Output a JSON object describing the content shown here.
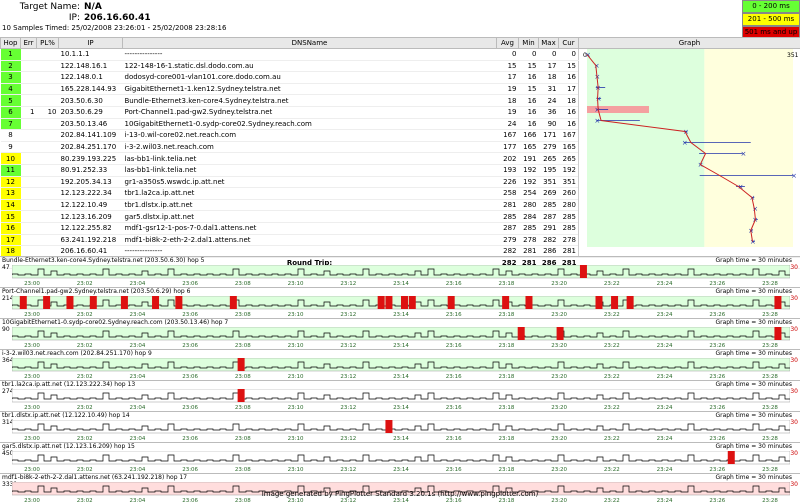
{
  "header": {
    "target_label": "Target Name:",
    "target_value": "N/A",
    "ip_label": "IP:",
    "ip_value": "206.16.60.41",
    "samples_label": "10 Samples Timed:",
    "samples_value": "25/02/2008 23:26:01 - 25/02/2008 23:28:16"
  },
  "legend": [
    {
      "label": "0 - 200 ms",
      "color": "#66ff33"
    },
    {
      "label": "201 - 500 ms",
      "color": "#ffff00"
    },
    {
      "label": "501 ms and up",
      "color": "#dd0000"
    }
  ],
  "columns": [
    "Hop",
    "Err",
    "PL%",
    "IP",
    "DNSName",
    "Avg",
    "Min",
    "Max",
    "Cur",
    "Graph"
  ],
  "graph_scale": {
    "min": "0",
    "max": "351"
  },
  "hops": [
    {
      "hop": "1",
      "err": "",
      "pl": "",
      "ip": "10.1.1.1",
      "dns": "---------------",
      "avg": "0",
      "min": "0",
      "max": "0",
      "cur": "0",
      "color": "#66ff33"
    },
    {
      "hop": "2",
      "err": "",
      "pl": "",
      "ip": "122.148.16.1",
      "dns": "122-148-16-1.static.dsl.dodo.com.au",
      "avg": "15",
      "min": "15",
      "max": "17",
      "cur": "15",
      "color": "#66ff33"
    },
    {
      "hop": "3",
      "err": "",
      "pl": "",
      "ip": "122.148.0.1",
      "dns": "dodosyd-core001-vlan101.core.dodo.com.au",
      "avg": "17",
      "min": "16",
      "max": "18",
      "cur": "16",
      "color": "#66ff33"
    },
    {
      "hop": "4",
      "err": "",
      "pl": "",
      "ip": "165.228.144.93",
      "dns": "GigabitEthernet1-1.ken12.Sydney.telstra.net",
      "avg": "19",
      "min": "15",
      "max": "31",
      "cur": "17",
      "color": "#66ff33"
    },
    {
      "hop": "5",
      "err": "",
      "pl": "",
      "ip": "203.50.6.30",
      "dns": "Bundle-Ethernet3.ken-core4.Sydney.telstra.net",
      "avg": "18",
      "min": "16",
      "max": "24",
      "cur": "18",
      "color": "#66ff33"
    },
    {
      "hop": "6",
      "err": "1",
      "pl": "10",
      "ip": "203.50.6.29",
      "dns": "Port-Channel1.pad-gw2.Sydney.telstra.net",
      "avg": "19",
      "min": "16",
      "max": "36",
      "cur": "16",
      "color": "#66ff33"
    },
    {
      "hop": "7",
      "err": "",
      "pl": "",
      "ip": "203.50.13.46",
      "dns": "10GigabitEthernet1-0.sydp-core02.Sydney.reach.com",
      "avg": "24",
      "min": "16",
      "max": "90",
      "cur": "16",
      "color": "#66ff33"
    },
    {
      "hop": "8",
      "err": "",
      "pl": "",
      "ip": "202.84.141.109",
      "dns": "i-13-0.wil-core02.net.reach.com",
      "avg": "167",
      "min": "166",
      "max": "171",
      "cur": "167",
      "color": "#ffffff"
    },
    {
      "hop": "9",
      "err": "",
      "pl": "",
      "ip": "202.84.251.170",
      "dns": "i-3-2.wil03.net.reach.com",
      "avg": "177",
      "min": "165",
      "max": "279",
      "cur": "165",
      "color": "#ffffff"
    },
    {
      "hop": "10",
      "err": "",
      "pl": "",
      "ip": "80.239.193.225",
      "dns": "las-bb1-link.telia.net",
      "avg": "202",
      "min": "191",
      "max": "265",
      "cur": "265",
      "color": "#ffff00"
    },
    {
      "hop": "11",
      "err": "",
      "pl": "",
      "ip": "80.91.252.33",
      "dns": "las-bb1-link.telia.net",
      "avg": "193",
      "min": "192",
      "max": "195",
      "cur": "192",
      "color": "#66ff33"
    },
    {
      "hop": "12",
      "err": "",
      "pl": "",
      "ip": "192.205.34.13",
      "dns": "gr1-a350s5.wswdc.ip.att.net",
      "avg": "226",
      "min": "192",
      "max": "351",
      "cur": "351",
      "color": "#ffff00"
    },
    {
      "hop": "13",
      "err": "",
      "pl": "",
      "ip": "12.123.222.34",
      "dns": "tbr1.la2ca.ip.att.net",
      "avg": "258",
      "min": "254",
      "max": "269",
      "cur": "260",
      "color": "#ffff00"
    },
    {
      "hop": "14",
      "err": "",
      "pl": "",
      "ip": "12.122.10.49",
      "dns": "tbr1.dlstx.ip.att.net",
      "avg": "281",
      "min": "280",
      "max": "285",
      "cur": "280",
      "color": "#ffff00"
    },
    {
      "hop": "15",
      "err": "",
      "pl": "",
      "ip": "12.123.16.209",
      "dns": "gar5.dlstx.ip.att.net",
      "avg": "285",
      "min": "284",
      "max": "287",
      "cur": "285",
      "color": "#ffff00"
    },
    {
      "hop": "16",
      "err": "",
      "pl": "",
      "ip": "12.122.255.82",
      "dns": "mdf1-gsr12-1-pos-7-0.dal1.attens.net",
      "avg": "287",
      "min": "285",
      "max": "291",
      "cur": "285",
      "color": "#ffff00"
    },
    {
      "hop": "17",
      "err": "",
      "pl": "",
      "ip": "63.241.192.218",
      "dns": "mdf1-bi8k-2-eth-2-2.dal1.attens.net",
      "avg": "279",
      "min": "278",
      "max": "282",
      "cur": "278",
      "color": "#ffff00"
    },
    {
      "hop": "18",
      "err": "",
      "pl": "",
      "ip": "206.16.60.41",
      "dns": "---------------",
      "avg": "282",
      "min": "281",
      "max": "286",
      "cur": "281",
      "color": "#ffff00"
    }
  ],
  "round_trip": {
    "label": "Round Trip:",
    "avg": "282",
    "min": "281",
    "max": "286",
    "cur": "281"
  },
  "time_ticks": [
    "23:00",
    "23:02",
    "23:04",
    "23:06",
    "23:08",
    "23:10",
    "23:12",
    "23:14",
    "23:16",
    "23:18",
    "23:20",
    "23:22",
    "23:24",
    "23:26",
    "23:28"
  ],
  "charts": [
    {
      "title": "Bundle-Ethernet3.ken-core4.Sydney.telstra.net (203.50.6.30) hop 5",
      "ymax": "47",
      "loss": "30",
      "graph_time": "Graph time = 30 minutes",
      "bg": "#ddffdd",
      "red": [
        0.73
      ]
    },
    {
      "title": "Port-Channel1.pad-gw2.Sydney.telstra.net (203.50.6.29) hop 6",
      "ymax": "214",
      "loss": "30",
      "graph_time": "Graph time = 30 minutes",
      "bg": "#ddffdd",
      "red": [
        0.01,
        0.04,
        0.07,
        0.1,
        0.14,
        0.18,
        0.21,
        0.28,
        0.47,
        0.48,
        0.5,
        0.51,
        0.56,
        0.63,
        0.66,
        0.75,
        0.77,
        0.79,
        0.98
      ]
    },
    {
      "title": "10GigabitEthernet1-0.sydp-core02.Sydney.reach.com (203.50.13.46) hop 7",
      "ymax": "90",
      "loss": "30",
      "graph_time": "Graph time = 30 minutes",
      "bg": "#ddffdd",
      "red": [
        0.65,
        0.7,
        0.98
      ]
    },
    {
      "title": "i-3-2.wil03.net.reach.com (202.84.251.170) hop 9",
      "ymax": "364",
      "loss": "30",
      "graph_time": "Graph time = 30 minutes",
      "bg": "#ddffdd",
      "red": [
        0.29
      ]
    },
    {
      "title": "tbr1.la2ca.ip.att.net (12.123.222.34) hop 13",
      "ymax": "274",
      "loss": "30",
      "graph_time": "Graph time = 30 minutes",
      "bg": "#ffffff",
      "red": [
        0.29
      ]
    },
    {
      "title": "tbr1.dlstx.ip.att.net (12.122.10.49) hop 14",
      "ymax": "314",
      "loss": "30",
      "graph_time": "Graph time = 30 minutes",
      "bg": "#ffffff",
      "red": [
        0.48
      ]
    },
    {
      "title": "gar5.dlstx.ip.att.net (12.123.16.209) hop 15",
      "ymax": "450",
      "loss": "30",
      "graph_time": "Graph time = 30 minutes",
      "bg": "#ffffff",
      "red": [
        0.92
      ]
    },
    {
      "title": "mdf1-bi8k-2-eth-2-2.dal1.attens.net (63.241.192.218) hop 17",
      "ymax": "3331",
      "loss": "30",
      "graph_time": "Graph time = 30 minutes",
      "bg": "#ffdddd",
      "red": []
    }
  ],
  "footer": "Image generated by PingPlotter Standard 3.20.1s (http://www.pingplotter.com)"
}
